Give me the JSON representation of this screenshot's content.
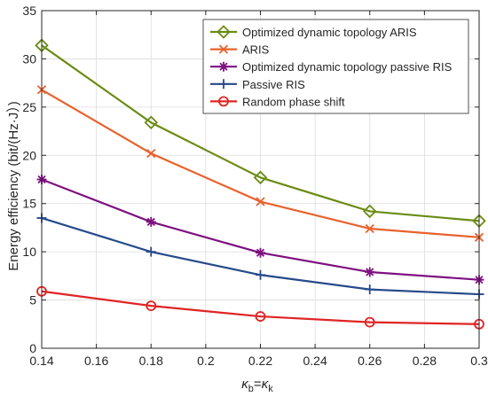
{
  "chart_data": {
    "type": "line",
    "xlabel": "κ_b=κ_k",
    "xlabel_parts": {
      "k1": "κ",
      "s1": "b",
      "eq": "=",
      "k2": "κ",
      "s2": "k"
    },
    "ylabel": "Energy efficiency (bit/(Hz·J）)",
    "xlim": [
      0.14,
      0.3
    ],
    "ylim": [
      0,
      35
    ],
    "xticks": [
      0.14,
      0.16,
      0.18,
      0.2,
      0.22,
      0.24,
      0.26,
      0.28,
      0.3
    ],
    "xtick_labels": [
      "0.14",
      "0.16",
      "0.18",
      "0.2",
      "0.22",
      "0.24",
      "0.26",
      "0.28",
      "0.3"
    ],
    "yticks": [
      0,
      5,
      10,
      15,
      20,
      25,
      30,
      35
    ],
    "ytick_labels": [
      "0",
      "5",
      "10",
      "15",
      "20",
      "25",
      "30",
      "35"
    ],
    "grid": true,
    "legend_position": "top-right",
    "x": [
      0.14,
      0.18,
      0.22,
      0.26,
      0.3
    ],
    "series": [
      {
        "name": "Optimized dynamic topology ARIS",
        "color": "#6a8c14",
        "marker": "diamond",
        "values": [
          31.4,
          23.4,
          17.7,
          14.2,
          13.2
        ]
      },
      {
        "name": "ARIS",
        "color": "#e8622c",
        "marker": "x",
        "values": [
          26.8,
          20.2,
          15.2,
          12.4,
          11.5
        ]
      },
      {
        "name": "Optimized dynamic topology passive RIS",
        "color": "#7e1081",
        "marker": "asterisk",
        "values": [
          17.5,
          13.1,
          9.9,
          7.9,
          7.1
        ]
      },
      {
        "name": "Passive RIS",
        "color": "#264a8a",
        "marker": "plus",
        "values": [
          13.5,
          10.0,
          7.6,
          6.1,
          5.6
        ]
      },
      {
        "name": "Random phase shift",
        "color": "#e02424",
        "marker": "circle",
        "values": [
          5.9,
          4.4,
          3.3,
          2.7,
          2.5
        ]
      }
    ]
  }
}
